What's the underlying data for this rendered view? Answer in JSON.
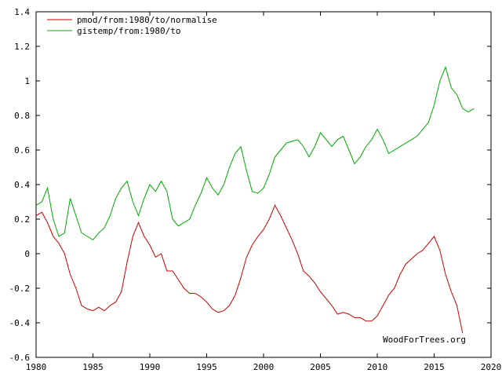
{
  "chart_data": {
    "type": "line",
    "xlim": [
      1980,
      2020
    ],
    "ylim": [
      -0.6,
      1.4
    ],
    "x_ticks": [
      1980,
      1985,
      1990,
      1995,
      2000,
      2005,
      2010,
      2015,
      2020
    ],
    "y_ticks": [
      -0.6,
      -0.4,
      -0.2,
      0,
      0.2,
      0.4,
      0.6,
      0.8,
      1,
      1.2,
      1.4
    ],
    "x_tick_labels": [
      "1980",
      "1985",
      "1990",
      "1995",
      "2000",
      "2005",
      "2010",
      "2015",
      "2020"
    ],
    "y_tick_labels": [
      "-0.6",
      "-0.4",
      "-0.2",
      "0",
      "0.2",
      "0.4",
      "0.6",
      "0.8",
      "1",
      "1.2",
      "1.4"
    ],
    "legend_position": "top-left",
    "watermark": "WoodForTrees.org",
    "series": [
      {
        "name": "pmod/from:1980/to/normalise",
        "color": "#cc0000",
        "x": [
          1980.0,
          1980.5,
          1981.0,
          1981.5,
          1982.0,
          1982.5,
          1983.0,
          1983.5,
          1984.0,
          1984.5,
          1985.0,
          1985.5,
          1986.0,
          1986.5,
          1987.0,
          1987.5,
          1988.0,
          1988.5,
          1989.0,
          1989.5,
          1990.0,
          1990.5,
          1991.0,
          1991.5,
          1992.0,
          1992.5,
          1993.0,
          1993.5,
          1994.0,
          1994.5,
          1995.0,
          1995.5,
          1996.0,
          1996.5,
          1997.0,
          1997.5,
          1998.0,
          1998.5,
          1999.0,
          1999.5,
          2000.0,
          2000.5,
          2001.0,
          2001.5,
          2002.0,
          2002.5,
          2003.0,
          2003.5,
          2004.0,
          2004.5,
          2005.0,
          2005.5,
          2006.0,
          2006.5,
          2007.0,
          2007.5,
          2008.0,
          2008.5,
          2009.0,
          2009.5,
          2010.0,
          2010.5,
          2011.0,
          2011.5,
          2012.0,
          2012.5,
          2013.0,
          2013.5,
          2014.0,
          2014.5,
          2015.0,
          2015.5,
          2016.0,
          2016.5,
          2017.0,
          2017.5
        ],
        "y": [
          0.22,
          0.24,
          0.18,
          0.1,
          0.06,
          0.0,
          -0.12,
          -0.2,
          -0.3,
          -0.32,
          -0.33,
          -0.31,
          -0.33,
          -0.3,
          -0.28,
          -0.22,
          -0.05,
          0.1,
          0.18,
          0.1,
          0.05,
          -0.02,
          0.0,
          -0.1,
          -0.1,
          -0.15,
          -0.2,
          -0.23,
          -0.23,
          -0.25,
          -0.28,
          -0.32,
          -0.34,
          -0.33,
          -0.3,
          -0.24,
          -0.14,
          -0.02,
          0.05,
          0.1,
          0.14,
          0.2,
          0.28,
          0.22,
          0.15,
          0.08,
          0.0,
          -0.1,
          -0.13,
          -0.17,
          -0.22,
          -0.26,
          -0.3,
          -0.35,
          -0.34,
          -0.35,
          -0.37,
          -0.37,
          -0.39,
          -0.39,
          -0.36,
          -0.3,
          -0.24,
          -0.2,
          -0.12,
          -0.06,
          -0.03,
          0.0,
          0.02,
          0.06,
          0.1,
          0.02,
          -0.12,
          -0.22,
          -0.3,
          -0.46
        ]
      },
      {
        "name": "gistemp/from:1980/to",
        "color": "#00aa00",
        "x": [
          1980.0,
          1980.5,
          1981.0,
          1981.5,
          1982.0,
          1982.5,
          1983.0,
          1983.5,
          1984.0,
          1984.5,
          1985.0,
          1985.5,
          1986.0,
          1986.5,
          1987.0,
          1987.5,
          1988.0,
          1988.5,
          1989.0,
          1989.5,
          1990.0,
          1990.5,
          1991.0,
          1991.5,
          1992.0,
          1992.5,
          1993.0,
          1993.5,
          1994.0,
          1994.5,
          1995.0,
          1995.5,
          1996.0,
          1996.5,
          1997.0,
          1997.5,
          1998.0,
          1998.5,
          1999.0,
          1999.5,
          2000.0,
          2000.5,
          2001.0,
          2001.5,
          2002.0,
          2002.5,
          2003.0,
          2003.5,
          2004.0,
          2004.5,
          2005.0,
          2005.5,
          2006.0,
          2006.5,
          2007.0,
          2007.5,
          2008.0,
          2008.5,
          2009.0,
          2009.5,
          2010.0,
          2010.5,
          2011.0,
          2011.5,
          2012.0,
          2012.5,
          2013.0,
          2013.5,
          2014.0,
          2014.5,
          2015.0,
          2015.5,
          2016.0,
          2016.5,
          2017.0,
          2017.5,
          2018.0,
          2018.5
        ],
        "y": [
          0.28,
          0.3,
          0.38,
          0.2,
          0.1,
          0.12,
          0.32,
          0.22,
          0.12,
          0.1,
          0.08,
          0.12,
          0.15,
          0.22,
          0.32,
          0.38,
          0.42,
          0.3,
          0.22,
          0.32,
          0.4,
          0.36,
          0.42,
          0.36,
          0.2,
          0.16,
          0.18,
          0.2,
          0.28,
          0.35,
          0.44,
          0.38,
          0.34,
          0.4,
          0.5,
          0.58,
          0.62,
          0.48,
          0.36,
          0.35,
          0.38,
          0.46,
          0.56,
          0.6,
          0.64,
          0.65,
          0.66,
          0.62,
          0.56,
          0.62,
          0.7,
          0.66,
          0.62,
          0.66,
          0.68,
          0.6,
          0.52,
          0.56,
          0.62,
          0.66,
          0.72,
          0.66,
          0.58,
          0.6,
          0.62,
          0.64,
          0.66,
          0.68,
          0.72,
          0.76,
          0.86,
          1.0,
          1.08,
          0.96,
          0.92,
          0.84,
          0.82,
          0.84
        ]
      }
    ]
  }
}
